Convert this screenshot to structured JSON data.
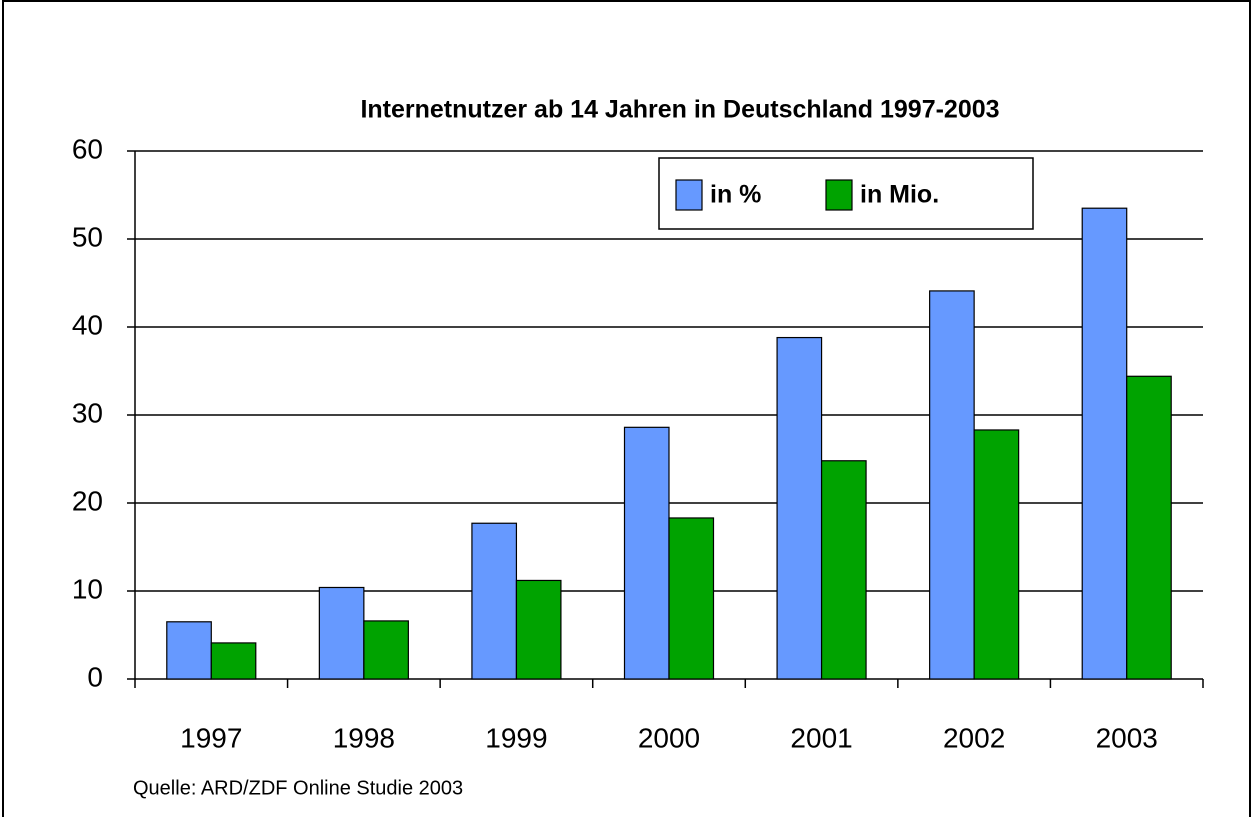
{
  "chart_data": {
    "type": "bar",
    "title": "Internetnutzer ab 14 Jahren in Deutschland 1997-2003",
    "categories": [
      "1997",
      "1998",
      "1999",
      "2000",
      "2001",
      "2002",
      "2003"
    ],
    "series": [
      {
        "name": "in %",
        "color": "#6699ff",
        "values": [
          6.5,
          10.4,
          17.7,
          28.6,
          38.8,
          44.1,
          53.5
        ]
      },
      {
        "name": "in Mio.",
        "color": "#00a300",
        "values": [
          4.1,
          6.6,
          11.2,
          18.3,
          24.8,
          28.3,
          34.4
        ]
      }
    ],
    "ylim": [
      0,
      60
    ],
    "yticks": [
      0,
      10,
      20,
      30,
      40,
      50,
      60
    ],
    "grid": true,
    "source": "Quelle: ARD/ZDF Online Studie 2003"
  }
}
